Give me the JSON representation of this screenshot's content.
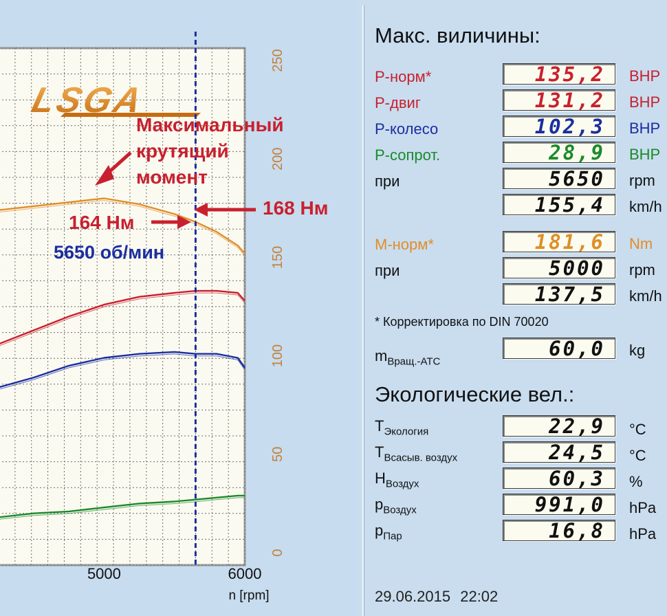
{
  "colors": {
    "red": "#c8202e",
    "dark_red": "#a81a28",
    "blue": "#1a2ea0",
    "green": "#1a8a2a",
    "orange": "#e08e28",
    "black": "#111111",
    "grid_bg": "#fbfaf1"
  },
  "chart": {
    "logo": "LSGA",
    "x_ticks": [
      "5000",
      "6000"
    ],
    "x_label": "n [rpm]",
    "right_ticks": [
      "250",
      "200",
      "150",
      "100",
      "50",
      "0"
    ],
    "annotations": {
      "max_torque": [
        "Максимальный",
        "крутящий",
        "момент"
      ],
      "torque_right": "168 Нм",
      "torque_left": "164 Нм",
      "rpm": "5650 об/мин"
    }
  },
  "chart_data": {
    "type": "line",
    "x_range": [
      4250,
      6000
    ],
    "right_axis_range": [
      0,
      250
    ],
    "marker_x_rpm": 5650,
    "series": [
      {
        "color": "orange",
        "x": [
          4250,
          4500,
          4750,
          5000,
          5250,
          5500,
          5650,
          5800,
          5950,
          6000
        ],
        "y": [
          174,
          176,
          178,
          180,
          177,
          172,
          168,
          163,
          156,
          152
        ]
      },
      {
        "color": "red",
        "x": [
          4250,
          4500,
          4750,
          5000,
          5250,
          5500,
          5650,
          5800,
          5950,
          6000
        ],
        "y": [
          106,
          113,
          120,
          126,
          130,
          132,
          133,
          133,
          132,
          128
        ]
      },
      {
        "color": "blue",
        "x": [
          4250,
          4500,
          4750,
          5000,
          5250,
          5500,
          5650,
          5800,
          5950,
          6000
        ],
        "y": [
          84,
          89,
          95,
          99,
          101,
          102,
          101,
          101,
          99,
          94
        ]
      },
      {
        "color": "green",
        "x": [
          4250,
          4500,
          4750,
          5000,
          5250,
          5500,
          5650,
          5800,
          5950,
          6000
        ],
        "y": [
          18,
          20,
          21,
          23,
          25,
          26,
          27,
          28,
          29,
          29
        ]
      }
    ]
  },
  "panel": {
    "title": "Макс. виличины:",
    "max_rows": [
      {
        "label": "P-норм*",
        "value": "135,2",
        "unit": "BHP",
        "color": "#c8202e"
      },
      {
        "label": "P-двиг",
        "value": "131,2",
        "unit": "BHP",
        "color": "#c8202e"
      },
      {
        "label": "P-колесо",
        "value": "102,3",
        "unit": "BHP",
        "color": "#1a2ea0"
      },
      {
        "label": "P-сопрот.",
        "value": "28,9",
        "unit": "BHP",
        "color": "#1a8a2a"
      },
      {
        "label": "при",
        "value": "5650",
        "unit": "rpm",
        "color": "#111111"
      },
      {
        "label": "",
        "value": "155,4",
        "unit": "km/h",
        "color": "#111111"
      },
      {
        "label": "M-норм*",
        "value": "181,6",
        "unit": "Nm",
        "color": "#e08e28"
      },
      {
        "label": "при",
        "value": "5000",
        "unit": "rpm",
        "color": "#111111"
      },
      {
        "label": "",
        "value": "137,5",
        "unit": "km/h",
        "color": "#111111"
      }
    ],
    "note": "* Корректировка по DIN 70020",
    "mass": {
      "main": "m",
      "sub": "Вращ.-АТС",
      "value": "60,0",
      "unit": "kg"
    },
    "eco_title": "Экологические вел.:",
    "eco_rows": [
      {
        "main": "T",
        "sub": "Экология",
        "value": "22,9",
        "unit": "°C"
      },
      {
        "main": "T",
        "sub": "Всасыв. воздух",
        "value": "24,5",
        "unit": "°C"
      },
      {
        "main": "H",
        "sub": "Воздух",
        "value": "60,3",
        "unit": "%"
      },
      {
        "main": "p",
        "sub": "Воздух",
        "value": "991,0",
        "unit": "hPa"
      },
      {
        "main": "p",
        "sub": "Пар",
        "value": "16,8",
        "unit": "hPa"
      }
    ],
    "datetime": "29.06.2015 22:02"
  }
}
